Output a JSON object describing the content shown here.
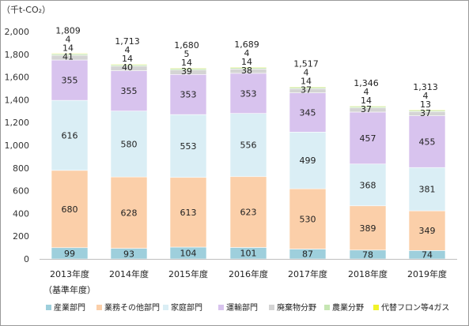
{
  "chart_data": {
    "type": "bar",
    "stacked": true,
    "unit_label": "（千t-CO₂）",
    "categories": [
      "2013年度",
      "2014年度",
      "2015年度",
      "2016年度",
      "2017年度",
      "2018年度",
      "2019年度"
    ],
    "category_sublabels": [
      "（基準年度）",
      "",
      "",
      "",
      "",
      "",
      ""
    ],
    "totals": [
      1809,
      1713,
      1680,
      1689,
      1517,
      1346,
      1313
    ],
    "totals_text": [
      "1,809",
      "1,713",
      "1,680",
      "1,689",
      "1,517",
      "1,346",
      "1,313"
    ],
    "series": [
      {
        "name": "産業部門",
        "color": "#9ecfdc",
        "values": [
          99,
          93,
          104,
          101,
          87,
          78,
          74
        ]
      },
      {
        "name": "業務その他部門",
        "color": "#fbcfa9",
        "values": [
          680,
          628,
          613,
          623,
          530,
          389,
          349
        ]
      },
      {
        "name": "家庭部門",
        "color": "#daeef5",
        "values": [
          616,
          580,
          553,
          556,
          499,
          368,
          381
        ]
      },
      {
        "name": "運輸部門",
        "color": "#d8c3ee",
        "values": [
          355,
          355,
          353,
          353,
          345,
          457,
          455
        ]
      },
      {
        "name": "廃棄物分野",
        "color": "#d4d4d4",
        "values": [
          41,
          40,
          39,
          38,
          37,
          37,
          37
        ]
      },
      {
        "name": "農業分野",
        "color": "#c6e6b3",
        "values": [
          14,
          14,
          14,
          14,
          14,
          14,
          13
        ]
      },
      {
        "name": "代替フロン等4ガス",
        "color": "#f1f32a",
        "values": [
          4,
          4,
          5,
          4,
          4,
          4,
          4
        ]
      }
    ],
    "ylim": [
      0,
      2000
    ],
    "yticks": [
      0,
      200,
      400,
      600,
      800,
      1000,
      1200,
      1400,
      1600,
      1800,
      2000
    ],
    "ytick_labels": [
      "0",
      "200",
      "400",
      "600",
      "800",
      "1,000",
      "1,200",
      "1,400",
      "1,600",
      "1,800",
      "2,000"
    ],
    "grid": false,
    "legend_position": "bottom"
  }
}
